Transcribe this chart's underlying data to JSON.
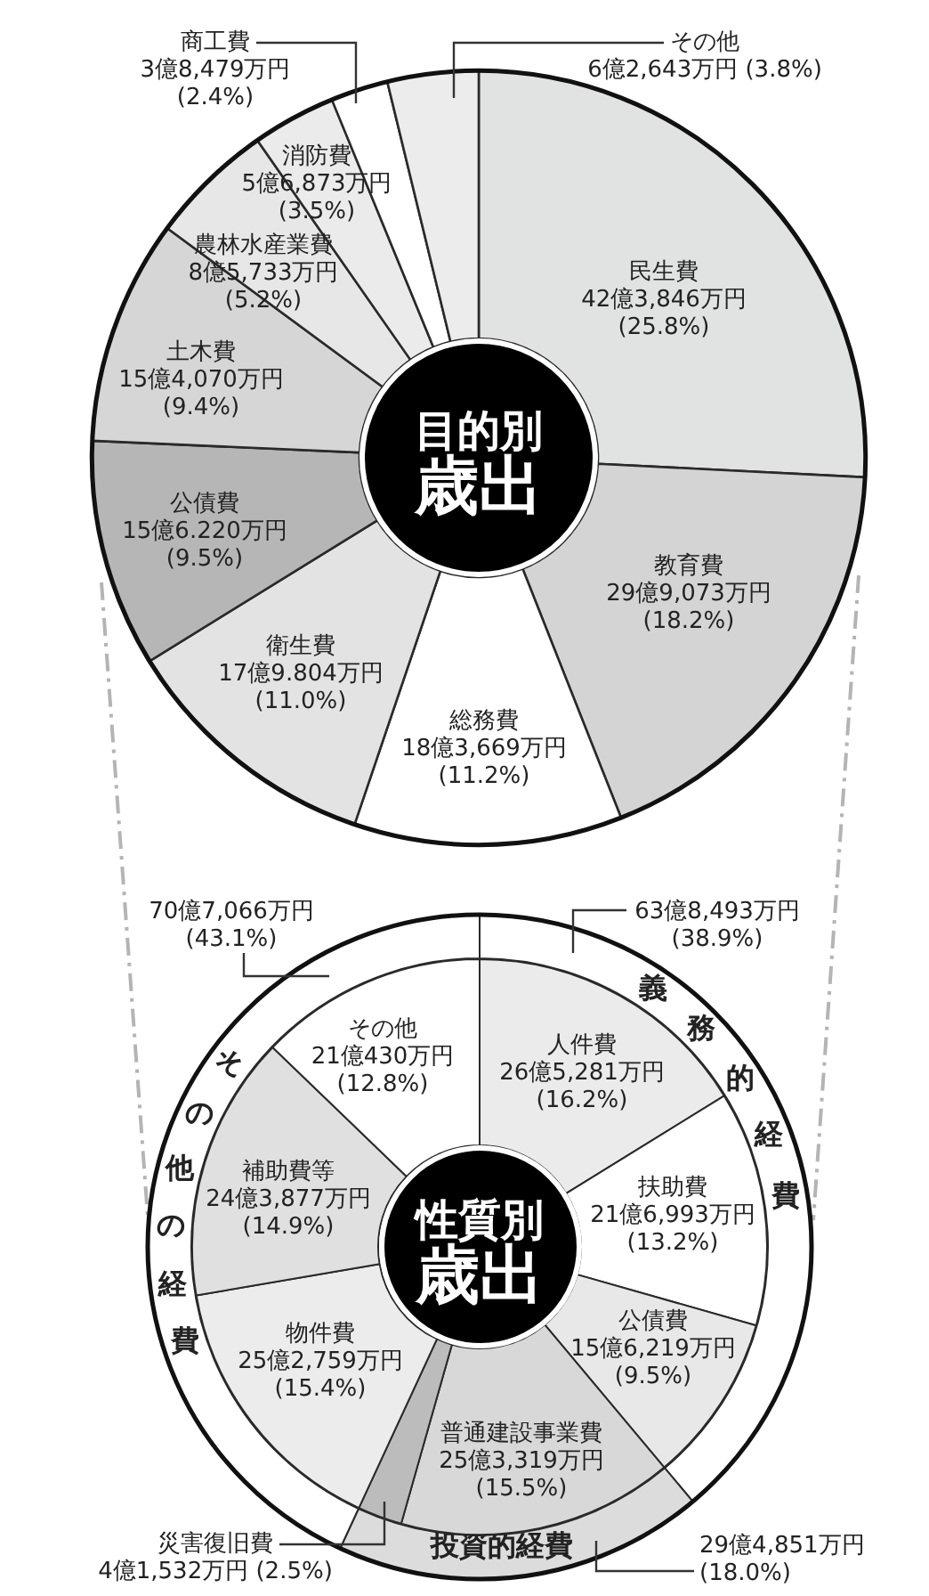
{
  "chart_data": [
    {
      "type": "donut",
      "title": "目的別歳出",
      "categories": [
        "民生費",
        "教育費",
        "総務費",
        "衛生費",
        "公債費",
        "土木費",
        "農林水産業費",
        "消防費",
        "商工費",
        "その他"
      ],
      "values": [
        25.8,
        18.2,
        11.2,
        11.0,
        9.5,
        9.4,
        5.2,
        3.5,
        2.4,
        3.8
      ],
      "colors": [
        "#e1e2e2",
        "#d4d4d4",
        "#ffffff",
        "#e3e3e3",
        "#b6b6b6",
        "#d6d6d6",
        "#e7e7e7",
        "#ebebeb",
        "#ffffff",
        "#ececec"
      ],
      "value_labels": [
        "42億3,846万円 (25.8%)",
        "29億9,073万円 (18.2%)",
        "18億3,669万円 (11.2%)",
        "17億9.804万円 (11.0%)",
        "15億6.220万円 (9.5%)",
        "15億4,070万円 (9.4%)",
        "8億5,733万円 (5.2%)",
        "5億6,873万円 (3.5%)",
        "3億8,479万円 (2.4%)",
        "6億2,643万円 (3.8%)"
      ]
    },
    {
      "type": "donut",
      "title": "性質別歳出",
      "categories": [
        "人件費",
        "扶助費",
        "公債費",
        "普通建設事業費",
        "災害復旧費",
        "物件費",
        "補助費等",
        "その他"
      ],
      "values": [
        16.2,
        13.2,
        9.5,
        15.5,
        2.5,
        15.4,
        14.9,
        12.8
      ],
      "colors": [
        "#ebebeb",
        "#ffffff",
        "#e8e8e8",
        "#d8d8d8",
        "#bcbcbc",
        "#ececec",
        "#e0e0e0",
        "#ffffff"
      ],
      "value_labels": [
        "26億5,281万円 (16.2%)",
        "21億6,993万円 (13.2%)",
        "15億6,219万円 (9.5%)",
        "25億3,319万円 (15.5%)",
        "4億1,532万円 (2.5%)",
        "25億2,759万円 (15.4%)",
        "24億3,877万円 (14.9%)",
        "21億430万円 (12.8%)"
      ]
    },
    {
      "type": "donut",
      "categories": [
        "義務的経費",
        "投資的経費",
        "その他の経費"
      ],
      "values": [
        38.9,
        18.0,
        43.1
      ],
      "colors": [
        "#ffffff",
        "#dcdcdc",
        "#ffffff"
      ],
      "value_labels": [
        "63億8,493万円 (38.9%)",
        "29億4,851万円 (18.0%)",
        "70億7,066万円 (43.1%)"
      ]
    }
  ]
}
